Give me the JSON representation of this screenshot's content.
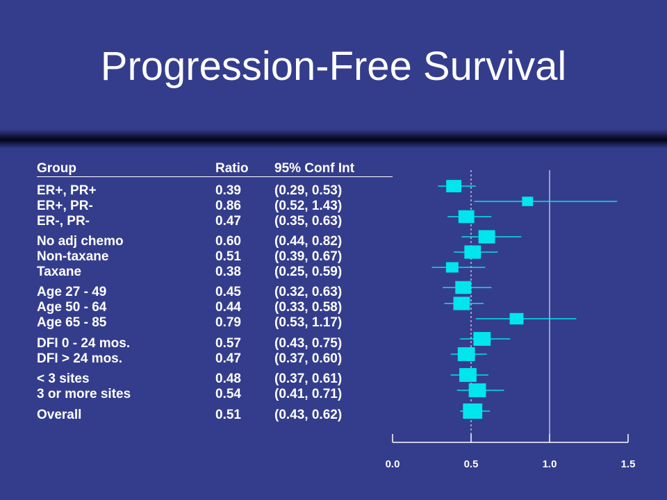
{
  "slide": {
    "title": "Progression-Free Survival"
  },
  "table": {
    "headers": {
      "group": "Group",
      "ratio": "Ratio",
      "ci": "95% Conf Int"
    },
    "rows": [
      {
        "group": "ER+, PR+",
        "ratio": "0.39",
        "ci": "(0.29, 0.53)"
      },
      {
        "group": "ER+, PR-",
        "ratio": "0.86",
        "ci": "(0.52, 1.43)"
      },
      {
        "group": "ER-, PR-",
        "ratio": "0.47",
        "ci": "(0.35, 0.63)"
      },
      {
        "group": "No adj chemo",
        "ratio": "0.60",
        "ci": "(0.44, 0.82)"
      },
      {
        "group": "Non-taxane",
        "ratio": "0.51",
        "ci": "(0.39, 0.67)"
      },
      {
        "group": "Taxane",
        "ratio": "0.38",
        "ci": "(0.25, 0.59)"
      },
      {
        "group": "Age 27 - 49",
        "ratio": "0.45",
        "ci": "(0.32, 0.63)"
      },
      {
        "group": "Age 50 - 64",
        "ratio": "0.44",
        "ci": "(0.33, 0.58)"
      },
      {
        "group": "Age 65 - 85",
        "ratio": "0.79",
        "ci": "(0.53, 1.17)"
      },
      {
        "group": "DFI 0 - 24 mos.",
        "ratio": "0.57",
        "ci": "(0.43, 0.75)"
      },
      {
        "group": "DFI > 24 mos.",
        "ratio": "0.47",
        "ci": "(0.37, 0.60)"
      },
      {
        "group": "< 3 sites",
        "ratio": "0.48",
        "ci": "(0.37, 0.61)"
      },
      {
        "group": "3 or more sites",
        "ratio": "0.54",
        "ci": "(0.41, 0.71)"
      },
      {
        "group": "Overall",
        "ratio": "0.51",
        "ci": "(0.43, 0.62)"
      }
    ]
  },
  "chart_data": {
    "type": "forest",
    "xlim": [
      0.0,
      1.5
    ],
    "xticks": [
      "0.0",
      "0.5",
      "1.0",
      "1.5"
    ],
    "reference_lines": [
      0.5,
      1.0
    ],
    "rows": [
      {
        "label": "ER+, PR+",
        "estimate": 0.39,
        "lower": 0.29,
        "upper": 0.53,
        "weight": 0.7
      },
      {
        "label": "ER+, PR-",
        "estimate": 0.86,
        "lower": 0.52,
        "upper": 1.43,
        "weight": 0.4
      },
      {
        "label": "ER-, PR-",
        "estimate": 0.47,
        "lower": 0.35,
        "upper": 0.63,
        "weight": 0.75
      },
      {
        "label": "No adj chemo",
        "estimate": 0.6,
        "lower": 0.44,
        "upper": 0.82,
        "weight": 0.8
      },
      {
        "label": "Non-taxane",
        "estimate": 0.51,
        "lower": 0.39,
        "upper": 0.67,
        "weight": 0.8
      },
      {
        "label": "Taxane",
        "estimate": 0.38,
        "lower": 0.25,
        "upper": 0.59,
        "weight": 0.5
      },
      {
        "label": "Age 27 - 49",
        "estimate": 0.45,
        "lower": 0.32,
        "upper": 0.63,
        "weight": 0.75
      },
      {
        "label": "Age 50 - 64",
        "estimate": 0.44,
        "lower": 0.33,
        "upper": 0.58,
        "weight": 0.8
      },
      {
        "label": "Age 65 - 85",
        "estimate": 0.79,
        "lower": 0.53,
        "upper": 1.17,
        "weight": 0.6
      },
      {
        "label": "DFI 0 - 24 mos.",
        "estimate": 0.57,
        "lower": 0.43,
        "upper": 0.75,
        "weight": 0.85
      },
      {
        "label": "DFI > 24 mos.",
        "estimate": 0.47,
        "lower": 0.37,
        "upper": 0.6,
        "weight": 0.85
      },
      {
        "label": "< 3 sites",
        "estimate": 0.48,
        "lower": 0.37,
        "upper": 0.61,
        "weight": 0.85
      },
      {
        "label": "3 or more sites",
        "estimate": 0.54,
        "lower": 0.41,
        "upper": 0.71,
        "weight": 0.85
      },
      {
        "label": "Overall",
        "estimate": 0.51,
        "lower": 0.43,
        "upper": 0.62,
        "weight": 1.0
      }
    ],
    "colors": {
      "background": "#343d8c",
      "marker": "#00e5ee",
      "axis": "#ffffff",
      "text": "#ffffff"
    }
  }
}
